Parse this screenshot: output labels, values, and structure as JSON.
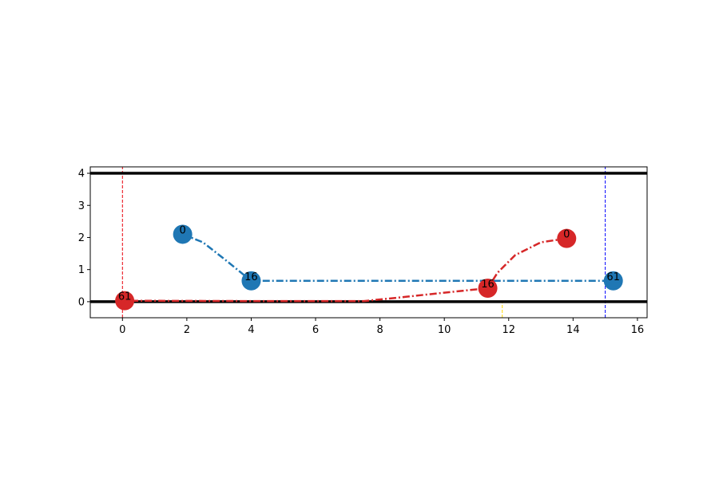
{
  "chart_data": {
    "type": "line",
    "xlim": [
      -1,
      16.3
    ],
    "ylim": [
      -0.5,
      4.2
    ],
    "x_ticks": [
      0,
      2,
      4,
      6,
      8,
      10,
      12,
      14,
      16
    ],
    "y_ticks": [
      0,
      1,
      2,
      3,
      4
    ],
    "grid": false,
    "horizontal_lines": [
      {
        "y": 4,
        "color": "#000000",
        "style": "solid"
      },
      {
        "y": 0,
        "color": "#000000",
        "style": "solid"
      }
    ],
    "vertical_lines": [
      {
        "x": 0,
        "color": "#e8000b",
        "style": "dashed",
        "y_range": [
          -0.5,
          4.2
        ]
      },
      {
        "x": 15,
        "color": "#0000ff",
        "style": "dashed",
        "y_range": [
          -0.5,
          4.2
        ]
      },
      {
        "x": 11.8,
        "color": "#ffd700",
        "style": "dashed",
        "y_range": [
          -0.5,
          0
        ]
      }
    ],
    "series": [
      {
        "color": "#1f77b4",
        "path": [
          [
            1.87,
            2.1
          ],
          [
            2.5,
            1.85
          ],
          [
            3.2,
            1.3
          ],
          [
            4.0,
            0.65
          ],
          [
            6.0,
            0.65
          ],
          [
            8.0,
            0.65
          ],
          [
            10.0,
            0.65
          ],
          [
            12.0,
            0.65
          ],
          [
            14.0,
            0.65
          ],
          [
            15.25,
            0.65
          ]
        ],
        "points": [
          {
            "x": 1.87,
            "y": 2.1,
            "label": "0"
          },
          {
            "x": 4.0,
            "y": 0.65,
            "label": "16"
          },
          {
            "x": 15.25,
            "y": 0.65,
            "label": "61"
          }
        ]
      },
      {
        "color": "#d62728",
        "path": [
          [
            13.8,
            1.97
          ],
          [
            13.0,
            1.85
          ],
          [
            12.2,
            1.45
          ],
          [
            11.65,
            0.9
          ],
          [
            11.35,
            0.42
          ],
          [
            10.0,
            0.28
          ],
          [
            8.5,
            0.12
          ],
          [
            7.5,
            0.02
          ],
          [
            4.0,
            0.02
          ],
          [
            0.07,
            0.03
          ]
        ],
        "points": [
          {
            "x": 13.8,
            "y": 1.97,
            "label": "0"
          },
          {
            "x": 11.35,
            "y": 0.42,
            "label": "16"
          },
          {
            "x": 0.07,
            "y": 0.03,
            "label": "61"
          }
        ]
      }
    ]
  }
}
